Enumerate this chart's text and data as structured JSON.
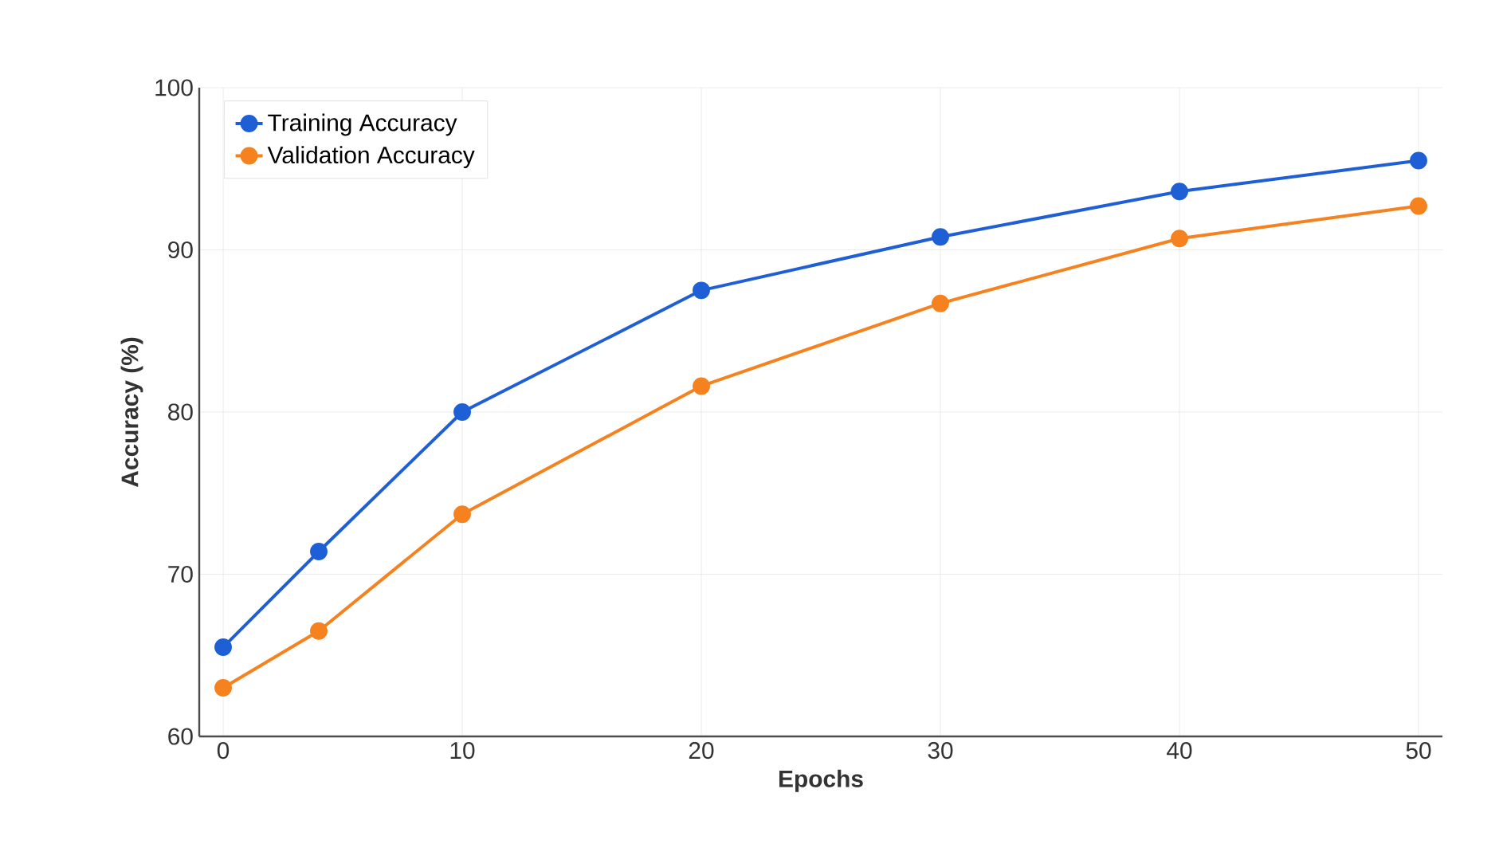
{
  "chart_data": {
    "type": "line",
    "xlabel": "Epochs",
    "ylabel": "Accuracy (%)",
    "x": [
      0,
      4,
      10,
      20,
      30,
      40,
      50
    ],
    "series": [
      {
        "name": "Training Accuracy",
        "color": "#1f5fd6",
        "values": [
          65.5,
          71.4,
          80.0,
          87.5,
          90.8,
          93.6,
          95.5
        ]
      },
      {
        "name": "Validation Accuracy",
        "color": "#f5821f",
        "values": [
          63.0,
          66.5,
          73.7,
          81.6,
          86.7,
          90.7,
          92.7
        ]
      }
    ],
    "xlim": [
      -1,
      51
    ],
    "ylim": [
      60,
      100
    ],
    "xticks": [
      0,
      10,
      20,
      30,
      40,
      50
    ],
    "yticks": [
      60,
      70,
      80,
      90,
      100
    ],
    "grid": true,
    "legend": "top left",
    "marker": "circle",
    "line_style": "solid"
  }
}
